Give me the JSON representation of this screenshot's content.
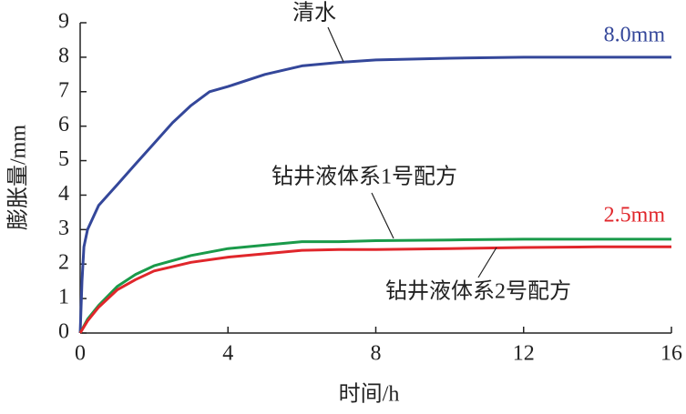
{
  "chart_data": {
    "type": "line",
    "xlabel": "时间/h",
    "ylabel": "膨胀量/mm",
    "xlim": [
      0,
      16
    ],
    "xticks": [
      0,
      4,
      8,
      12,
      16
    ],
    "ylim": [
      0,
      9
    ],
    "yticks": [
      0,
      1,
      2,
      3,
      4,
      5,
      6,
      7,
      8,
      9
    ],
    "series": [
      {
        "name": "清水",
        "color": "#34479a",
        "x": [
          0,
          0.05,
          0.1,
          0.2,
          0.5,
          1,
          1.5,
          2,
          2.5,
          3,
          3.5,
          4,
          5,
          6,
          7,
          8,
          10,
          12,
          14,
          16
        ],
        "values": [
          0,
          1.5,
          2.5,
          3.0,
          3.7,
          4.3,
          4.9,
          5.5,
          6.1,
          6.6,
          7.0,
          7.15,
          7.5,
          7.75,
          7.85,
          7.92,
          7.97,
          8.0,
          8.0,
          8.0
        ]
      },
      {
        "name": "钻井液体系1号配方",
        "color": "#1a9a4a",
        "x": [
          0,
          0.2,
          0.5,
          1,
          1.5,
          2,
          3,
          4,
          5,
          6,
          7,
          8,
          10,
          12,
          14,
          16
        ],
        "values": [
          0,
          0.4,
          0.8,
          1.35,
          1.7,
          1.95,
          2.25,
          2.45,
          2.55,
          2.65,
          2.65,
          2.68,
          2.7,
          2.72,
          2.72,
          2.72
        ]
      },
      {
        "name": "钻井液体系2号配方",
        "color": "#e0262b",
        "x": [
          0,
          0.2,
          0.5,
          1,
          1.5,
          2,
          3,
          4,
          5,
          6,
          7,
          8,
          10,
          12,
          14,
          16
        ],
        "values": [
          0,
          0.35,
          0.75,
          1.25,
          1.55,
          1.8,
          2.05,
          2.2,
          2.3,
          2.4,
          2.42,
          2.42,
          2.45,
          2.48,
          2.5,
          2.5
        ]
      }
    ],
    "annotations": [
      "8.0mm",
      "2.5mm"
    ]
  }
}
